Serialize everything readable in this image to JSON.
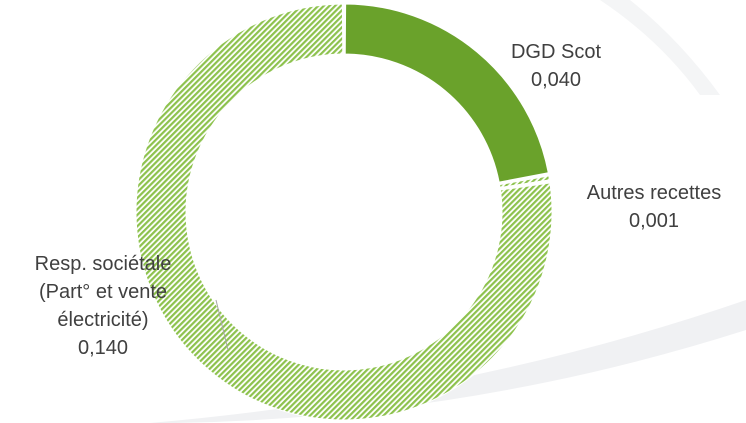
{
  "chart_data": {
    "type": "pie",
    "variant": "donut",
    "categories": [
      "DGD Scot",
      "Autres recettes",
      "Resp. sociétale (Part° et vente électricité)"
    ],
    "values": [
      0.04,
      0.001,
      0.14
    ],
    "labels": [
      [
        "DGD Scot",
        "0,040"
      ],
      [
        "Autres recettes",
        "0,001"
      ],
      [
        "Resp. sociétale",
        "(Part° et vente",
        "électricité)",
        "0,140"
      ]
    ],
    "colors": [
      "#6aa22b",
      "#8dc24d",
      "#8dc24d"
    ],
    "fill_styles": [
      "solid",
      "hatched",
      "hatched"
    ],
    "legend": "none",
    "title": ""
  }
}
